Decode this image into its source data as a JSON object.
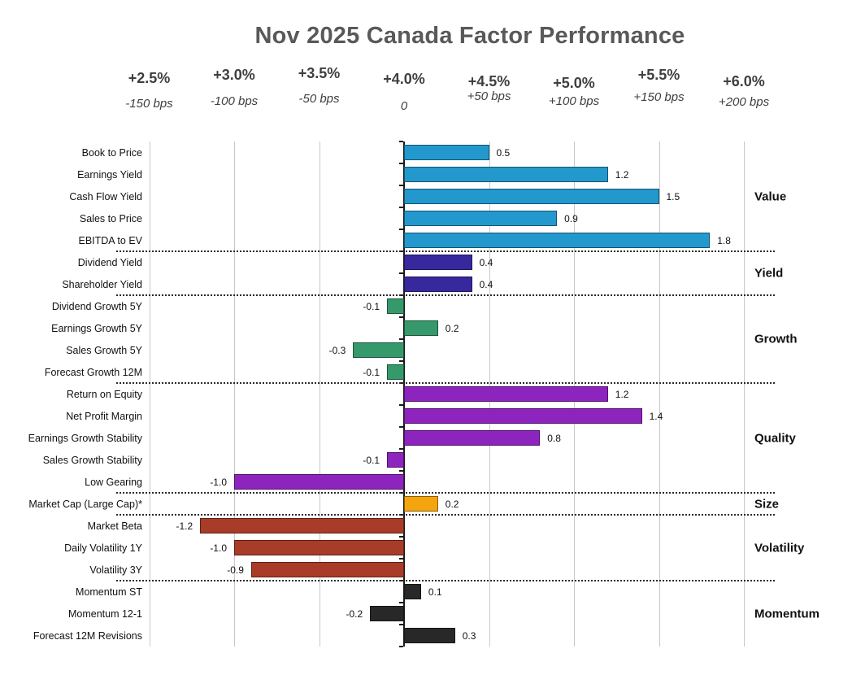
{
  "title": "Nov 2025 Canada Factor Performance",
  "chart_data": {
    "type": "bar",
    "orientation": "horizontal",
    "title": "Nov 2025 Canada Factor Performance",
    "xlim": [
      -1.7,
      2.2
    ],
    "grid": true,
    "legend_position": "right-group-labels",
    "axis_ticks": [
      {
        "pct": "+2.5%",
        "bps": "-150 bps",
        "value": -1.5
      },
      {
        "pct": "+3.0%",
        "bps": "-100 bps",
        "value": -1.0
      },
      {
        "pct": "+3.5%",
        "bps": "-50 bps",
        "value": -0.5
      },
      {
        "pct": "+4.0%",
        "bps": "0",
        "value": 0
      },
      {
        "pct": "+4.5%",
        "bps": "+50 bps",
        "value": 0.5
      },
      {
        "pct": "+5.0%",
        "bps": "+100 bps",
        "value": 1.0
      },
      {
        "pct": "+5.5%",
        "bps": "+150 bps",
        "value": 1.5
      },
      {
        "pct": "+6.0%",
        "bps": "+200 bps",
        "value": 2.0
      }
    ],
    "groups": [
      {
        "name": "Value",
        "color": "#2398CD",
        "items": [
          {
            "label": "Book to Price",
            "value": 0.5
          },
          {
            "label": "Earnings Yield",
            "value": 1.2
          },
          {
            "label": "Cash Flow Yield",
            "value": 1.5
          },
          {
            "label": "Sales to Price",
            "value": 0.9
          },
          {
            "label": "EBITDA to EV",
            "value": 1.8
          }
        ]
      },
      {
        "name": "Yield",
        "color": "#37289E",
        "items": [
          {
            "label": "Dividend Yield",
            "value": 0.4
          },
          {
            "label": "Shareholder Yield",
            "value": 0.4
          }
        ]
      },
      {
        "name": "Growth",
        "color": "#35996B",
        "items": [
          {
            "label": "Dividend Growth 5Y",
            "value": -0.1
          },
          {
            "label": "Earnings Growth 5Y",
            "value": 0.2
          },
          {
            "label": "Sales Growth 5Y",
            "value": -0.3
          },
          {
            "label": "Forecast Growth 12M",
            "value": -0.1
          }
        ]
      },
      {
        "name": "Quality",
        "color": "#8E24BE",
        "items": [
          {
            "label": "Return on Equity",
            "value": 1.2
          },
          {
            "label": "Net Profit Margin",
            "value": 1.4
          },
          {
            "label": "Earnings Growth Stability",
            "value": 0.8
          },
          {
            "label": "Sales Growth Stability",
            "value": -0.1
          },
          {
            "label": "Low Gearing",
            "value": -1.0
          }
        ]
      },
      {
        "name": "Size",
        "color": "#F4A50D",
        "items": [
          {
            "label": "Market Cap (Large Cap)*",
            "value": 0.2
          }
        ]
      },
      {
        "name": "Volatility",
        "color": "#A93C28",
        "items": [
          {
            "label": "Market Beta",
            "value": -1.2
          },
          {
            "label": "Daily Volatility 1Y",
            "value": -1.0
          },
          {
            "label": "Volatility 3Y",
            "value": -0.9
          }
        ]
      },
      {
        "name": "Momentum",
        "color": "#282828",
        "items": [
          {
            "label": "Momentum ST",
            "value": 0.1
          },
          {
            "label": "Momentum 12-1",
            "value": -0.2
          },
          {
            "label": "Forecast 12M Revisions",
            "value": 0.3
          }
        ]
      }
    ]
  }
}
